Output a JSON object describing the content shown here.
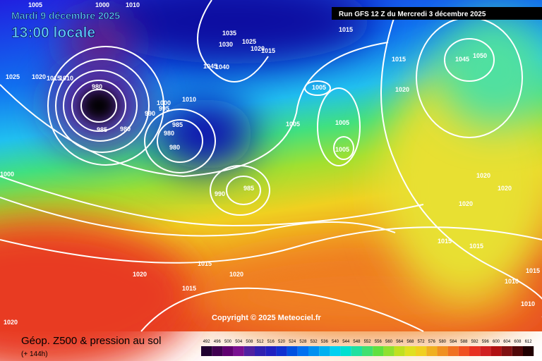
{
  "header": {
    "date": "Mardi 9 décembre 2025",
    "time": "13:00 locale",
    "run": "Run GFS 12 Z du Mercredi 3 décembre 2025"
  },
  "map": {
    "copyright": "Copyright © 2025 Meteociel.fr",
    "isobar_labels": [
      1005,
      1000,
      1010,
      1025,
      1020,
      1015,
      1010,
      980,
      985,
      980,
      990,
      1000,
      995,
      1010,
      985,
      980,
      980,
      1035,
      1030,
      1025,
      1020,
      1015,
      1045,
      1040,
      1005,
      1005,
      1005,
      1005,
      985,
      990,
      1015,
      1015,
      1020,
      1045,
      1050,
      1020,
      1020,
      1020,
      1015,
      1015,
      1015,
      1020,
      1020,
      1015,
      1020,
      1010,
      1010,
      1015,
      1000
    ]
  },
  "legend": {
    "title": "Géop. Z500 & pression au sol",
    "lead": "(+ 144h)",
    "scale": {
      "values": [
        492,
        496,
        500,
        504,
        508,
        512,
        516,
        520,
        524,
        528,
        532,
        536,
        540,
        544,
        548,
        552,
        556,
        560,
        564,
        568,
        572,
        576,
        580,
        584,
        588,
        592,
        596,
        600,
        604,
        608,
        612
      ],
      "colors": [
        "#200030",
        "#400050",
        "#600070",
        "#7a1090",
        "#5020a0",
        "#3020b0",
        "#2020c0",
        "#1030d0",
        "#0050e0",
        "#0070f0",
        "#0090f0",
        "#00b0f0",
        "#00d0f0",
        "#00e0d0",
        "#20e0a0",
        "#40e070",
        "#60e040",
        "#90e030",
        "#c0e020",
        "#e0e020",
        "#f0d020",
        "#f0b020",
        "#f09020",
        "#f07020",
        "#f05020",
        "#e83020",
        "#d02020",
        "#b01010",
        "#801010",
        "#500808",
        "#200000"
      ]
    }
  }
}
